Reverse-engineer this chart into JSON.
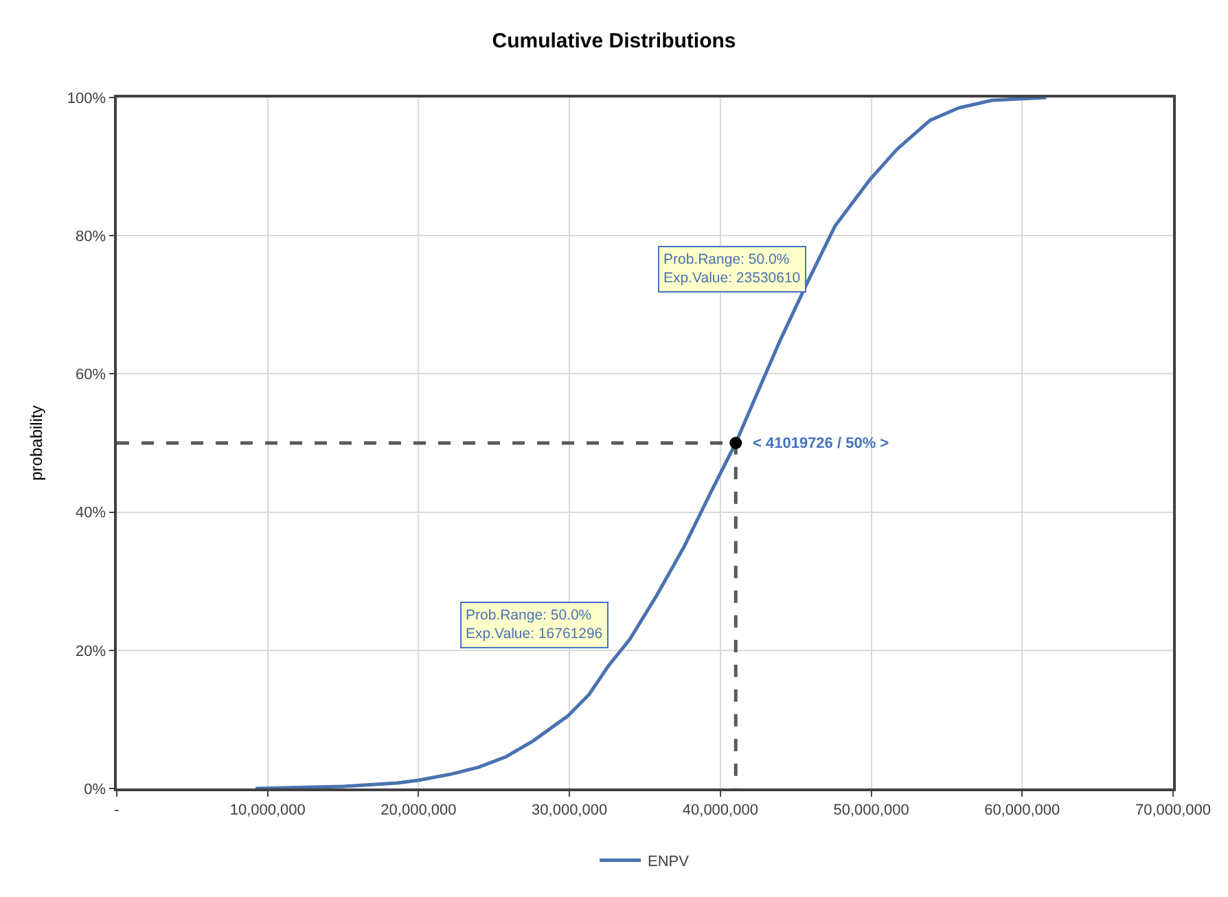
{
  "chart_data": {
    "type": "line",
    "title": "Cumulative Distributions",
    "ylabel": "probability",
    "xlim": [
      0,
      70000000
    ],
    "xticks": [
      {
        "value": 0,
        "label": "-"
      },
      {
        "value": 10000000,
        "label": "10,000,000"
      },
      {
        "value": 20000000,
        "label": "20,000,000"
      },
      {
        "value": 30000000,
        "label": "30,000,000"
      },
      {
        "value": 40000000,
        "label": "40,000,000"
      },
      {
        "value": 50000000,
        "label": "50,000,000"
      },
      {
        "value": 60000000,
        "label": "60,000,000"
      },
      {
        "value": 70000000,
        "label": "70,000,000"
      }
    ],
    "ylim": [
      0,
      100
    ],
    "yticks": [
      {
        "value": 0,
        "label": "0%"
      },
      {
        "value": 20,
        "label": "20%"
      },
      {
        "value": 40,
        "label": "40%"
      },
      {
        "value": 60,
        "label": "60%"
      },
      {
        "value": 80,
        "label": "80%"
      },
      {
        "value": 100,
        "label": "100%"
      }
    ],
    "grid": true,
    "legend": "bottom",
    "series": [
      {
        "name": "ENPV",
        "color": "#4a72b0",
        "line_style": "solid",
        "marker": "none",
        "x": [
          9200000,
          15000000,
          18600000,
          20000000,
          22200000,
          24000000,
          25800000,
          27600000,
          29900000,
          31300000,
          32600000,
          34000000,
          35800000,
          37600000,
          39400000,
          41019726,
          42600000,
          43950000,
          45800000,
          47600000,
          49900000,
          51700000,
          53900000,
          55800000,
          58000000,
          61600000
        ],
        "values": [
          0,
          0.3,
          0.8,
          1.2,
          2.1,
          3.1,
          4.6,
          6.9,
          10.5,
          13.6,
          17.8,
          21.6,
          28,
          35,
          43,
          50,
          58,
          64.8,
          73.4,
          81.4,
          88.1,
          92.5,
          96.7,
          98.5,
          99.6,
          100
        ]
      },
      {
        "color": "#595959",
        "line_style": "dashed",
        "marker": "none",
        "x": [
          0,
          41019726,
          41019726
        ],
        "values": [
          50,
          50,
          0
        ]
      },
      {
        "color": "#000000",
        "type": "scatter",
        "marker": "circle",
        "x": [
          41019726
        ],
        "values": [
          50
        ]
      }
    ],
    "annotations": [
      "< 41019726 / 50% >",
      "Prob.Range: 50.0%\nExp.Value: 23530610",
      "Prob.Range: 50.0%\nExp.Value: 16761296"
    ]
  }
}
